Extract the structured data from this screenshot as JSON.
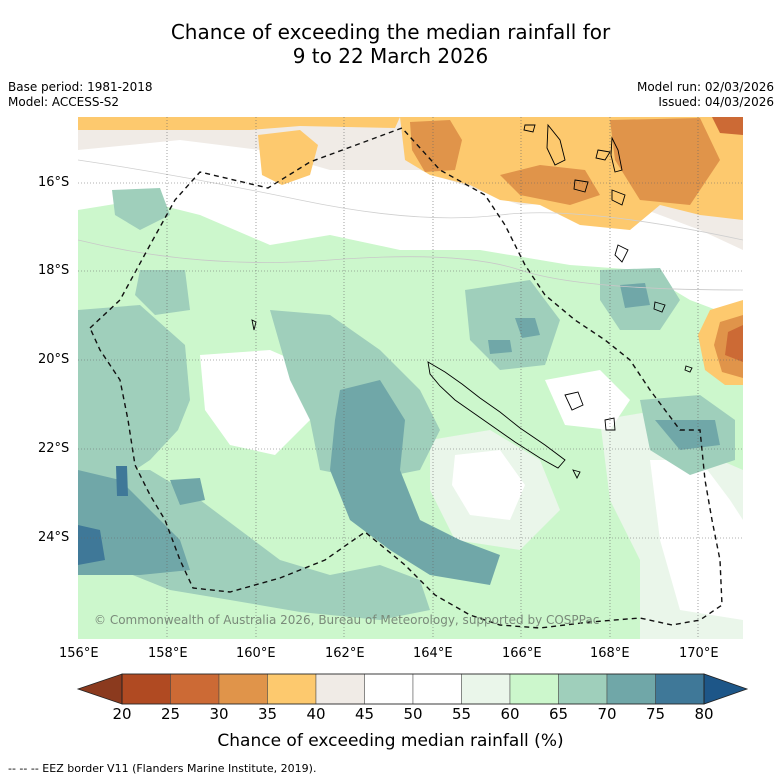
{
  "header": {
    "title_line1": "Chance of exceeding the median rainfall for",
    "title_line2": "9 to 22 March 2026",
    "base_period": "Base period: 1981-2018",
    "model": "Model: ACCESS-S2",
    "model_run": "Model run: 02/03/2026",
    "issued": "Issued: 04/03/2026"
  },
  "map": {
    "lat_labels": [
      "16°S",
      "18°S",
      "20°S",
      "22°S",
      "24°S"
    ],
    "lon_labels": [
      "156°E",
      "158°E",
      "160°E",
      "162°E",
      "164°E",
      "166°E",
      "168°E",
      "170°E"
    ],
    "copyright": "© Commonwealth of Australia 2026, Bureau of Meteorology, supported by COSPPac"
  },
  "colorbar": {
    "title": "Chance of exceeding median rainfall (%)",
    "ticks": [
      "20",
      "25",
      "30",
      "35",
      "40",
      "45",
      "50",
      "55",
      "60",
      "65",
      "70",
      "75",
      "80"
    ],
    "colors": {
      "lt20": "#8b3a1e",
      "c20": "#b04a22",
      "c25": "#cc6a35",
      "c30": "#e0944a",
      "c35": "#fdc96e",
      "c40": "#f0ebe6",
      "c45": "#ffffff",
      "c50": "#ffffff",
      "c55": "#eaf6ea",
      "c60": "#ccf7cc",
      "c65": "#9fcfbb",
      "c70": "#70a7a8",
      "c75": "#3f7898",
      "gt80": "#1d5688"
    }
  },
  "footer": {
    "legend": "--  --  -- EEZ border V11 (Flanders Marine Institute, 2019)."
  }
}
